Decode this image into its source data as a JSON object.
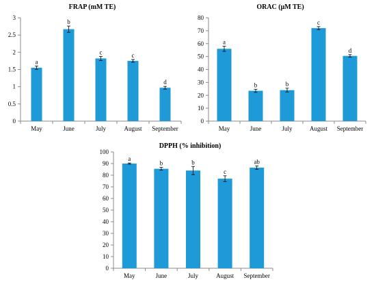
{
  "chart_data": [
    {
      "type": "bar",
      "title": "FRAP (mM TE)",
      "categories": [
        "May",
        "June",
        "July",
        "August",
        "September"
      ],
      "values": [
        1.55,
        2.67,
        1.82,
        1.75,
        0.97
      ],
      "errors": [
        0.05,
        0.09,
        0.06,
        0.04,
        0.04
      ],
      "letters": [
        "a",
        "b",
        "c",
        "c",
        "d"
      ],
      "ylim": [
        0,
        3
      ],
      "yticks": [
        0,
        0.5,
        1,
        1.5,
        2,
        2.5,
        3
      ],
      "ytick_labels": [
        "0",
        "0.5",
        "1",
        "1.5",
        "2",
        "2.5",
        "3"
      ],
      "xlabel": "",
      "ylabel": "",
      "grid": false,
      "bar_color": "#1f9ad9"
    },
    {
      "type": "bar",
      "title": "ORAC (μM TE)",
      "categories": [
        "May",
        "June",
        "July",
        "August",
        "September"
      ],
      "values": [
        56,
        23.5,
        24,
        72,
        50.5
      ],
      "errors": [
        2,
        1.2,
        1.5,
        1.2,
        1
      ],
      "letters": [
        "a",
        "b",
        "b",
        "c",
        "d"
      ],
      "ylim": [
        0,
        80
      ],
      "yticks": [
        0,
        10,
        20,
        30,
        40,
        50,
        60,
        70,
        80
      ],
      "ytick_labels": [
        "0",
        "10",
        "20",
        "30",
        "40",
        "50",
        "60",
        "70",
        "80"
      ],
      "xlabel": "",
      "ylabel": "",
      "grid": false,
      "bar_color": "#1f9ad9"
    },
    {
      "type": "bar",
      "title": "DPPH (% inhibition)",
      "categories": [
        "May",
        "June",
        "July",
        "August",
        "September"
      ],
      "values": [
        90,
        85.5,
        84,
        77,
        86.5
      ],
      "errors": [
        0.5,
        1.2,
        3.5,
        2.5,
        1.5
      ],
      "letters": [
        "a",
        "b",
        "b",
        "c",
        "ab"
      ],
      "ylim": [
        0,
        100
      ],
      "yticks": [
        0,
        10,
        20,
        30,
        40,
        50,
        60,
        70,
        80,
        90,
        100
      ],
      "ytick_labels": [
        "0",
        "10",
        "20",
        "30",
        "40",
        "50",
        "60",
        "70",
        "80",
        "90",
        "100"
      ],
      "xlabel": "",
      "ylabel": "",
      "grid": false,
      "bar_color": "#1f9ad9"
    }
  ]
}
